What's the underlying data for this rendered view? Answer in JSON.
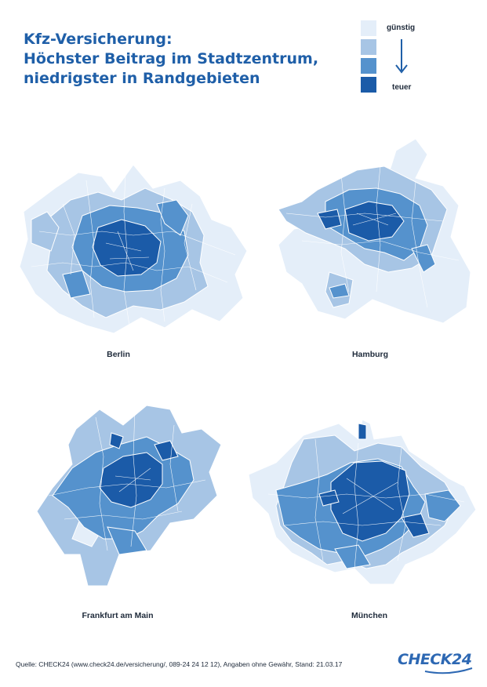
{
  "title": {
    "line1": "Kfz-Versicherung:",
    "line2": "Höchster Beitrag im Stadtzentrum,",
    "line3": "niedrigster in Randgebieten"
  },
  "legend": {
    "low_label": "günstig",
    "high_label": "teuer",
    "colors": [
      "#e4eef9",
      "#a7c5e5",
      "#5592cd",
      "#1b5ba8"
    ]
  },
  "cities": [
    {
      "name": "Berlin"
    },
    {
      "name": "Hamburg"
    },
    {
      "name": "Frankfurt am Main"
    },
    {
      "name": "München"
    }
  ],
  "footer": {
    "source": "Quelle: CHECK24 (www.check24.de/versicherung/, 089-24 24 12 12), Angaben ohne Gewähr, Stand: 21.03.17",
    "logo": "CHECK24"
  }
}
